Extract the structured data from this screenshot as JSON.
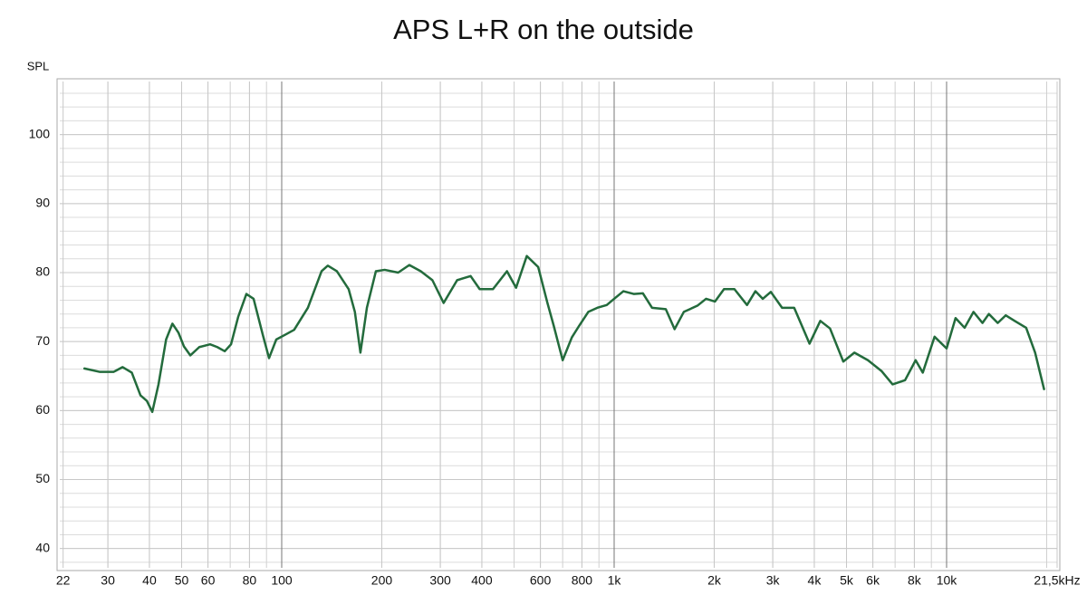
{
  "chart_data": {
    "type": "line",
    "title": "APS L+R on the outside",
    "y_label": "SPL",
    "log_x": true,
    "grid": true,
    "xlim": [
      21.5,
      21500
    ],
    "ylim": [
      37.2,
      107.7
    ],
    "xticks": [
      22,
      30,
      40,
      50,
      60,
      80,
      100,
      200,
      300,
      400,
      600,
      800,
      {
        "value": 1000,
        "label": "1k"
      },
      {
        "value": 2000,
        "label": "2k"
      },
      {
        "value": 3000,
        "label": "3k"
      },
      {
        "value": 4000,
        "label": "4k"
      },
      {
        "value": 5000,
        "label": "5k"
      },
      {
        "value": 6000,
        "label": "6k"
      },
      {
        "value": 8000,
        "label": "8k"
      },
      {
        "value": 10000,
        "label": "10k"
      },
      {
        "value": 21500,
        "label": "21,5kHz"
      }
    ],
    "yticks": [
      40,
      50,
      60,
      70,
      80,
      90,
      100
    ],
    "x": [
      25.5,
      28.4,
      31.2,
      33.2,
      35.4,
      37.6,
      39.3,
      40.8,
      42.6,
      44.9,
      46.9,
      48.9,
      50.8,
      53.1,
      56.5,
      60.9,
      64,
      67.4,
      70.4,
      74,
      78.3,
      82.3,
      87.7,
      91.6,
      96.3,
      102.5,
      109,
      119.9,
      131.8,
      137.6,
      146.5,
      159,
      166,
      172.5,
      180.4,
      192,
      204,
      224,
      242,
      262,
      284,
      307,
      337,
      370,
      394,
      432,
      476,
      507,
      546,
      591,
      630,
      658,
      700,
      746,
      785,
      836,
      890,
      950,
      1000,
      1066,
      1145,
      1220,
      1300,
      1430,
      1520,
      1620,
      1780,
      1890,
      2010,
      2140,
      2300,
      2510,
      2660,
      2800,
      2960,
      3200,
      3480,
      3870,
      4170,
      4460,
      4890,
      5280,
      5800,
      6380,
      6880,
      7500,
      8070,
      8480,
      9200,
      10000,
      10640,
      11330,
      12050,
      12820,
      13400,
      14250,
      15060,
      16020,
      17350,
      18460,
      19640
    ],
    "series": [
      {
        "color": "#236b3c",
        "values": [
          66.1,
          65.6,
          65.6,
          66.3,
          65.5,
          62.2,
          61.4,
          59.8,
          63.8,
          70.3,
          72.6,
          71.3,
          69.3,
          68.0,
          69.2,
          69.6,
          69.2,
          68.6,
          69.6,
          73.6,
          76.9,
          76.2,
          71.0,
          67.6,
          70.3,
          71.0,
          71.7,
          74.9,
          80.2,
          81.0,
          80.2,
          77.6,
          74.3,
          68.4,
          74.9,
          80.2,
          80.4,
          80.0,
          81.1,
          80.2,
          78.9,
          75.6,
          78.9,
          79.5,
          77.6,
          77.6,
          80.2,
          77.8,
          82.4,
          80.8,
          75.6,
          72.3,
          67.3,
          70.6,
          72.3,
          74.3,
          74.9,
          75.3,
          76.2,
          77.3,
          76.9,
          77.0,
          74.9,
          74.7,
          71.8,
          74.3,
          75.2,
          76.2,
          75.8,
          77.6,
          77.6,
          75.3,
          77.3,
          76.2,
          77.2,
          74.9,
          74.9,
          69.7,
          73.0,
          71.9,
          67.1,
          68.4,
          67.3,
          65.7,
          63.8,
          64.4,
          67.3,
          65.5,
          70.7,
          69.0,
          73.4,
          72.0,
          74.3,
          72.7,
          74.0,
          72.7,
          73.8,
          73.0,
          72.0,
          68.4,
          63.1
        ]
      }
    ]
  }
}
